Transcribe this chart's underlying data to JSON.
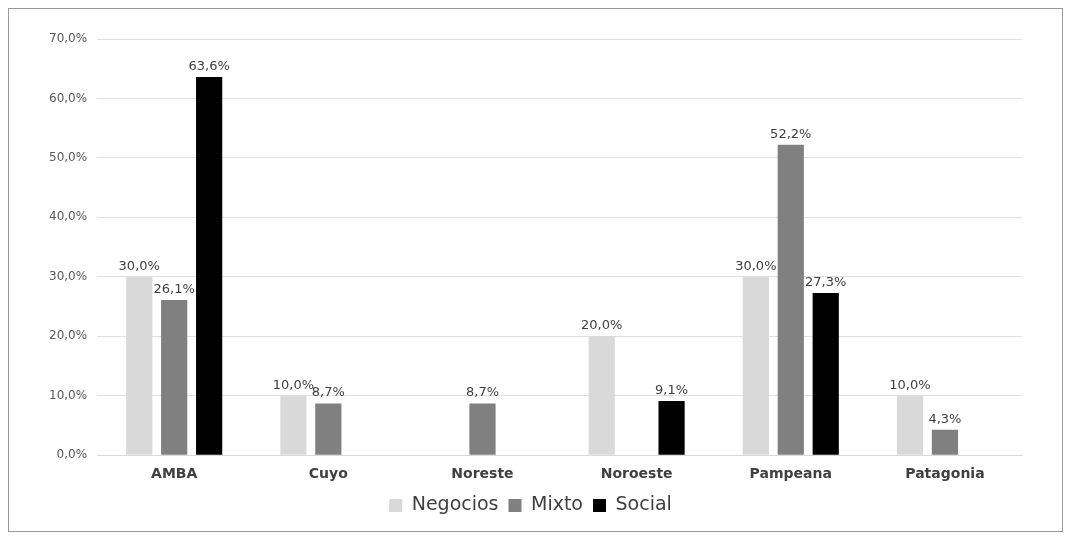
{
  "chart_data": {
    "type": "bar",
    "categories": [
      "AMBA",
      "Cuyo",
      "Noreste",
      "Noroeste",
      "Pampeana",
      "Patagonia"
    ],
    "series": [
      {
        "name": "Negocios",
        "color": "#d9d9d9",
        "values": [
          30.0,
          10.0,
          null,
          20.0,
          30.0,
          10.0
        ],
        "value_labels": [
          "30,0%",
          "10,0%",
          null,
          "20,0%",
          "30,0%",
          "10,0%"
        ]
      },
      {
        "name": "Mixto",
        "color": "#808080",
        "values": [
          26.1,
          8.7,
          8.7,
          null,
          52.2,
          4.3
        ],
        "value_labels": [
          "26,1%",
          "8,7%",
          "8,7%",
          null,
          "52,2%",
          "4,3%"
        ]
      },
      {
        "name": "Social",
        "color": "#000000",
        "values": [
          63.6,
          null,
          null,
          9.1,
          27.3,
          null
        ],
        "value_labels": [
          "63,6%",
          null,
          null,
          "9,1%",
          "27,3%",
          null
        ]
      }
    ],
    "ylim": [
      0,
      70
    ],
    "yticks": [
      {
        "value": 0,
        "label": "0,0%"
      },
      {
        "value": 10,
        "label": "10,0%"
      },
      {
        "value": 20,
        "label": "20,0%"
      },
      {
        "value": 30,
        "label": "30,0%"
      },
      {
        "value": 40,
        "label": "40,0%"
      },
      {
        "value": 50,
        "label": "50,0%"
      },
      {
        "value": 60,
        "label": "60,0%"
      },
      {
        "value": 70,
        "label": "70,0%"
      }
    ],
    "grid": "y",
    "legend": "bottom"
  }
}
